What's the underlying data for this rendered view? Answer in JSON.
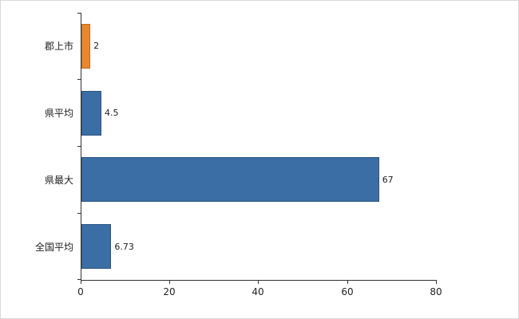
{
  "chart_data": {
    "type": "bar",
    "orientation": "horizontal",
    "title": "",
    "categories": [
      "郡上市",
      "県平均",
      "県最大",
      "全国平均"
    ],
    "values": [
      2,
      4.5,
      67,
      6.73
    ],
    "value_labels": [
      "2",
      "4.5",
      "67",
      "6.73"
    ],
    "series_colors": [
      "#e8872e",
      "#3a6ea5",
      "#3a6ea5",
      "#3a6ea5"
    ],
    "bar_border_colors": [
      "#bf6c1f",
      "#2d5680",
      "#2d5680",
      "#2d5680"
    ],
    "xlim": [
      0,
      80
    ],
    "x_ticks": [
      "0",
      "20",
      "40",
      "60",
      "80"
    ],
    "grid": false,
    "legend": false,
    "background": "#ffffff",
    "axis_color": "#333333"
  }
}
